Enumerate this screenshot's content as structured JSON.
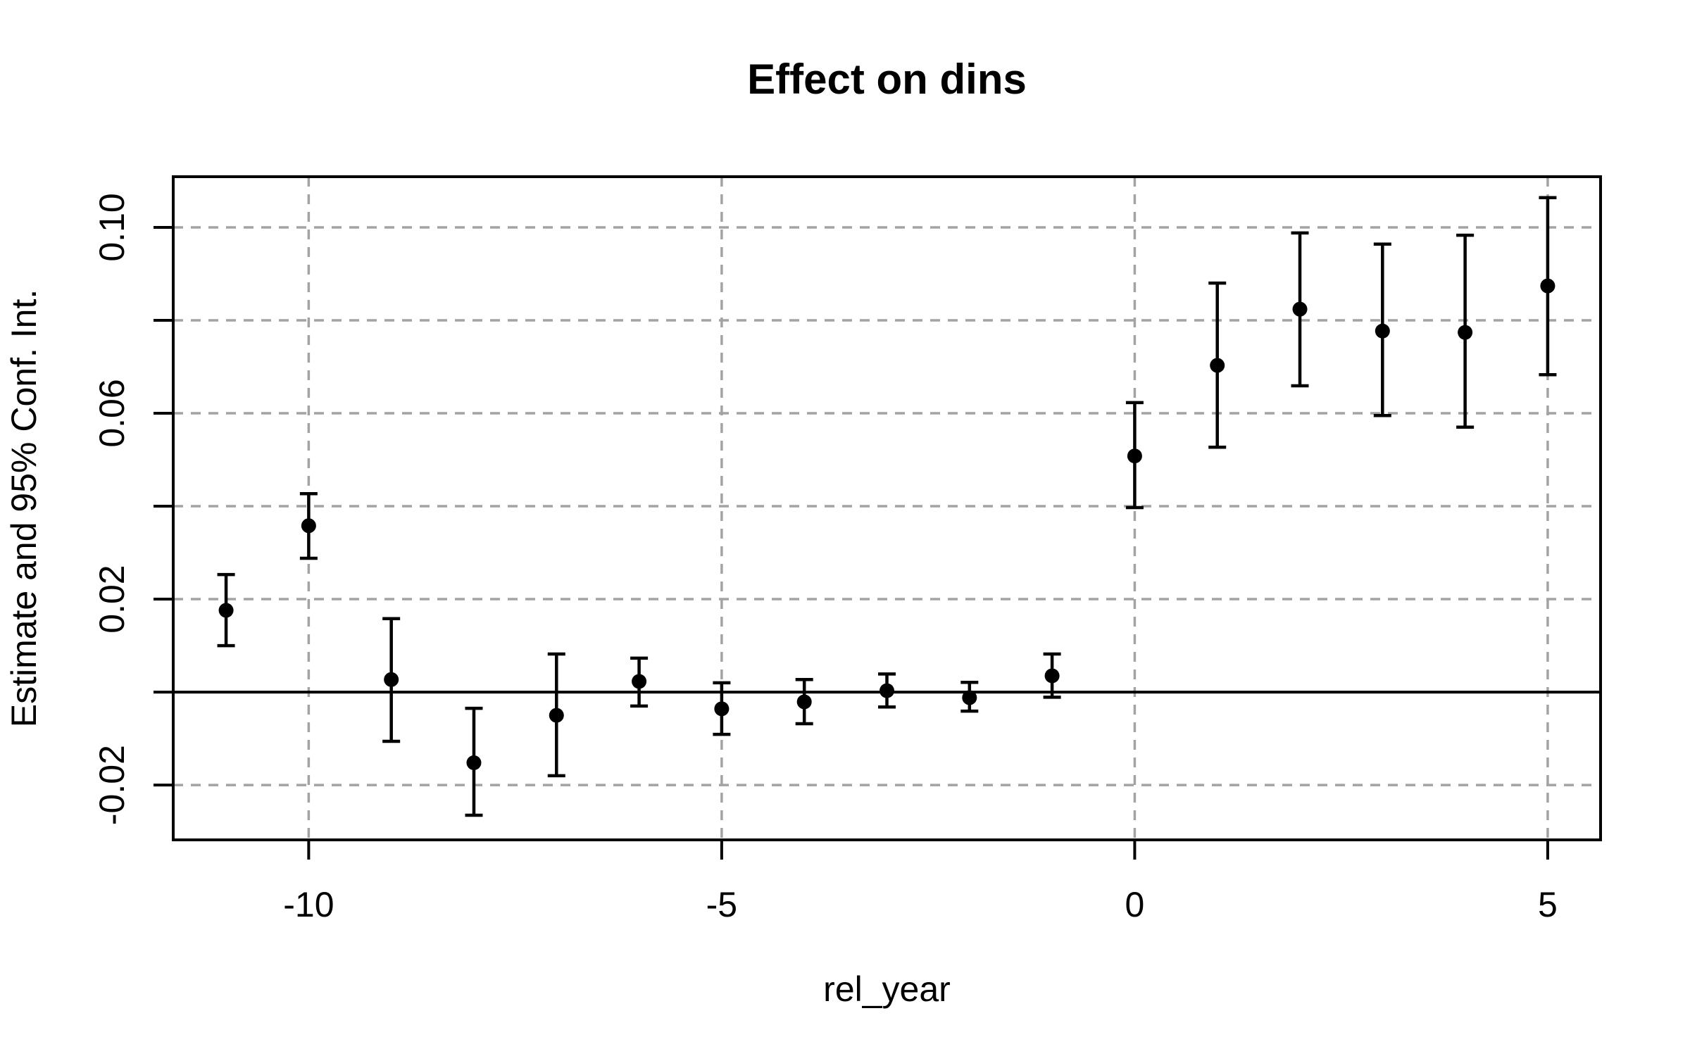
{
  "chart_data": {
    "type": "scatter",
    "title": "Effect on dins",
    "xlabel": "rel_year",
    "ylabel": "Estimate and 95% Conf. Int.",
    "xlim": [
      -11.64,
      5.64
    ],
    "ylim": [
      -0.0318,
      0.1109
    ],
    "x_ticks": [
      -10,
      -5,
      0,
      5
    ],
    "x_tick_labels": [
      "-10",
      "-5",
      "0",
      "5"
    ],
    "y_ticks": [
      -0.02,
      0,
      0.02,
      0.04,
      0.06,
      0.08,
      0.1
    ],
    "y_tick_labels": [
      "-0.02",
      "",
      "0.02",
      "",
      "0.06",
      "",
      "0.10"
    ],
    "grid": {
      "show": true,
      "style": "dashed",
      "color": "#a3a3a3",
      "x_at": [
        -10,
        -5,
        0,
        5
      ],
      "y_at": [
        -0.02,
        0.02,
        0.04,
        0.06,
        0.08,
        0.1
      ]
    },
    "zero_line": {
      "show": true,
      "y": 0
    },
    "axis_color": "#000000",
    "point_color": "#000000",
    "legend": "none",
    "series": [
      {
        "name": "Estimate and 95% Conf. Int.",
        "marker": "filled-circle",
        "points": [
          {
            "x": -11,
            "y": 0.0176,
            "lo": 0.01,
            "hi": 0.0253
          },
          {
            "x": -10,
            "y": 0.0358,
            "lo": 0.0288,
            "hi": 0.0427
          },
          {
            "x": -9,
            "y": 0.0027,
            "lo": -0.0106,
            "hi": 0.0158
          },
          {
            "x": -8,
            "y": -0.0152,
            "lo": -0.0265,
            "hi": -0.0035
          },
          {
            "x": -7,
            "y": -0.005,
            "lo": -0.018,
            "hi": 0.0082
          },
          {
            "x": -6,
            "y": 0.0023,
            "lo": -0.003,
            "hi": 0.0073
          },
          {
            "x": -5,
            "y": -0.0036,
            "lo": -0.0091,
            "hi": 0.002
          },
          {
            "x": -4,
            "y": -0.0021,
            "lo": -0.0068,
            "hi": 0.0027
          },
          {
            "x": -3,
            "y": 0.0003,
            "lo": -0.0032,
            "hi": 0.0039
          },
          {
            "x": -2,
            "y": -0.0012,
            "lo": -0.0041,
            "hi": 0.0021
          },
          {
            "x": -1,
            "y": 0.0035,
            "lo": -0.0011,
            "hi": 0.0082
          },
          {
            "x": 0,
            "y": 0.0508,
            "lo": 0.0397,
            "hi": 0.0623
          },
          {
            "x": 1,
            "y": 0.0703,
            "lo": 0.0527,
            "hi": 0.088
          },
          {
            "x": 2,
            "y": 0.0824,
            "lo": 0.0659,
            "hi": 0.0988
          },
          {
            "x": 3,
            "y": 0.0777,
            "lo": 0.0595,
            "hi": 0.0964
          },
          {
            "x": 4,
            "y": 0.0774,
            "lo": 0.057,
            "hi": 0.0983
          },
          {
            "x": 5,
            "y": 0.0874,
            "lo": 0.0683,
            "hi": 0.1064
          }
        ]
      }
    ]
  }
}
